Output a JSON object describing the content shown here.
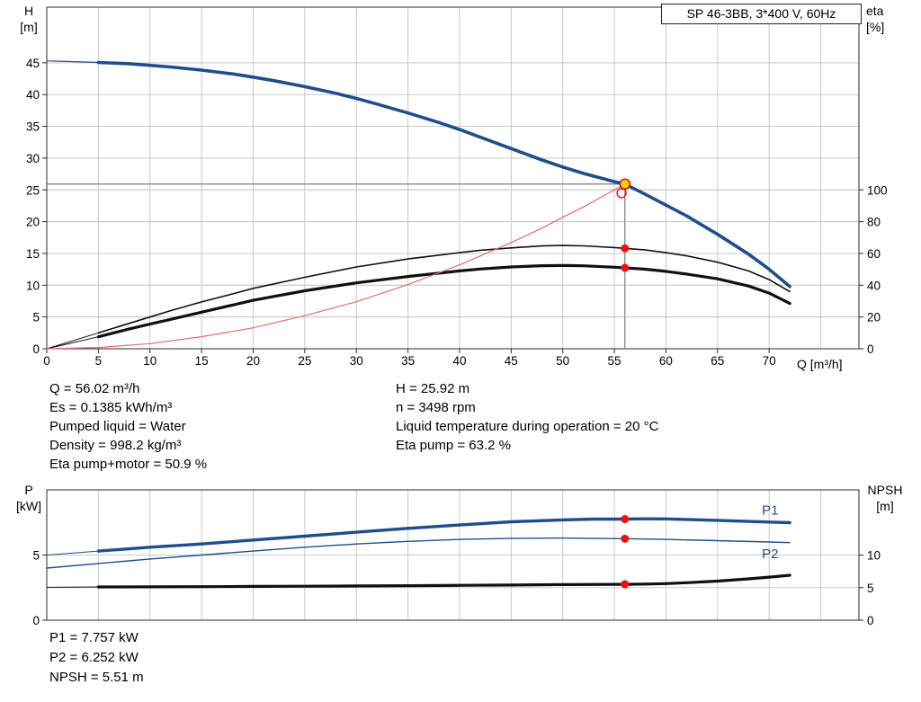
{
  "title_box": {
    "label": "SP 46-3BB, 3*400 V, 60Hz"
  },
  "axis_corner_labels": {
    "h": "H",
    "h_unit": "[m]",
    "eta": "eta",
    "eta_unit": "[%]",
    "q": "Q [m³/h]",
    "p": "P",
    "p_unit": "[kW]",
    "npsh": "NPSH",
    "npsh_unit": "[m]"
  },
  "operating_point_info": {
    "left": [
      "Q = 56.02 m³/h",
      "Es = 0.1385 kWh/m³",
      "Pumped liquid = Water",
      "Density = 998.2 kg/m³",
      "Eta pump+motor = 50.9 %"
    ],
    "right": [
      "H = 25.92 m",
      "n = 3498 rpm",
      "Liquid temperature during operation = 20 °C",
      "Eta pump = 63.2 %"
    ]
  },
  "power_info": [
    "P1 = 7.757 kW",
    "P2 = 6.252 kW",
    "NPSH = 5.51 m"
  ],
  "colors": {
    "curve_blue": "#1e4e8c",
    "curve_black": "#101010",
    "system_red": "#e36c6c",
    "marker_red": "#ee1111",
    "marker_yellow": "#ffd400",
    "grid": "#c9c9c9",
    "frame": "#2a2a2a",
    "crosshair": "#7d7d7d"
  },
  "chart_data": [
    {
      "id": "qh-efficiency-chart",
      "type": "line",
      "title": "SP 46-3BB, 3*400 V, 60Hz",
      "x_axis": {
        "label": "Q [m³/h]",
        "min": 0,
        "max": 78.7,
        "grid_step": 5,
        "ticks": [
          0,
          5,
          10,
          15,
          20,
          25,
          30,
          35,
          40,
          45,
          50,
          55,
          60,
          65,
          70
        ],
        "show_tick_labels": true
      },
      "y_left": {
        "label": "H [m]",
        "min": 0,
        "max": 53.75,
        "ticks": [
          0,
          5,
          10,
          15,
          20,
          25,
          30,
          35,
          40,
          45
        ]
      },
      "y_right": {
        "label": "eta [%]",
        "min": 0,
        "max": 215,
        "ticks": [
          0,
          20,
          40,
          60,
          80,
          100
        ]
      },
      "crosshair": {
        "q": 56.02,
        "value": 25.92,
        "axis": "left"
      },
      "series": [
        {
          "name": "head-curve-lead",
          "axis": "left",
          "color": "#1e4e8c",
          "width": 1.2,
          "points": [
            [
              0,
              45.3
            ],
            [
              2,
              45.2
            ],
            [
              5,
              45.05
            ]
          ]
        },
        {
          "name": "head-curve",
          "axis": "left",
          "color": "#1e4e8c",
          "width": 3.6,
          "points": [
            [
              5,
              45.05
            ],
            [
              8,
              44.85
            ],
            [
              10,
              44.6
            ],
            [
              12,
              44.35
            ],
            [
              15,
              43.85
            ],
            [
              18,
              43.25
            ],
            [
              20,
              42.75
            ],
            [
              22,
              42.2
            ],
            [
              25,
              41.25
            ],
            [
              28,
              40.2
            ],
            [
              30,
              39.4
            ],
            [
              32,
              38.5
            ],
            [
              35,
              37.1
            ],
            [
              38,
              35.6
            ],
            [
              40,
              34.5
            ],
            [
              42,
              33.3
            ],
            [
              45,
              31.5
            ],
            [
              48,
              29.7
            ],
            [
              50,
              28.6
            ],
            [
              52,
              27.6
            ],
            [
              55,
              26.3
            ],
            [
              56.02,
              25.92
            ],
            [
              58,
              24.3
            ],
            [
              60,
              22.6
            ],
            [
              62,
              20.9
            ],
            [
              65,
              18.0
            ],
            [
              68,
              14.9
            ],
            [
              70,
              12.5
            ],
            [
              72,
              9.8
            ]
          ]
        },
        {
          "name": "eta-pump-curve-lead",
          "axis": "right",
          "color": "#101010",
          "width": 1,
          "points": [
            [
              0,
              0
            ],
            [
              5,
              10
            ]
          ]
        },
        {
          "name": "eta-pump-curve",
          "axis": "right",
          "color": "#101010",
          "width": 1.6,
          "points": [
            [
              5,
              10
            ],
            [
              8,
              16
            ],
            [
              10,
              20
            ],
            [
              12,
              24
            ],
            [
              15,
              29.5
            ],
            [
              18,
              34.5
            ],
            [
              20,
              38
            ],
            [
              25,
              45
            ],
            [
              30,
              51.5
            ],
            [
              35,
              56.5
            ],
            [
              40,
              60.5
            ],
            [
              42,
              62
            ],
            [
              45,
              63.5
            ],
            [
              48,
              64.7
            ],
            [
              50,
              65
            ],
            [
              52,
              64.8
            ],
            [
              55,
              63.7
            ],
            [
              56.02,
              63.2
            ],
            [
              58,
              62.2
            ],
            [
              60,
              60.5
            ],
            [
              62,
              58.5
            ],
            [
              65,
              54.5
            ],
            [
              68,
              49
            ],
            [
              70,
              43.5
            ],
            [
              72,
              36
            ]
          ]
        },
        {
          "name": "eta-pump-motor-curve-lead",
          "axis": "right",
          "color": "#101010",
          "width": 1,
          "points": [
            [
              0,
              0
            ],
            [
              5,
              7.5
            ]
          ]
        },
        {
          "name": "eta-pump-motor-curve",
          "axis": "right",
          "color": "#101010",
          "width": 3.2,
          "points": [
            [
              5,
              7.5
            ],
            [
              8,
              12.5
            ],
            [
              10,
              15.5
            ],
            [
              12,
              18.5
            ],
            [
              15,
              23
            ],
            [
              18,
              27.5
            ],
            [
              20,
              30.5
            ],
            [
              25,
              36.5
            ],
            [
              30,
              41.5
            ],
            [
              35,
              45.5
            ],
            [
              40,
              49
            ],
            [
              42,
              50.2
            ],
            [
              45,
              51.5
            ],
            [
              48,
              52.3
            ],
            [
              50,
              52.4
            ],
            [
              52,
              52.2
            ],
            [
              55,
              51.3
            ],
            [
              56.02,
              50.9
            ],
            [
              58,
              50.1
            ],
            [
              60,
              48.7
            ],
            [
              62,
              47
            ],
            [
              65,
              44
            ],
            [
              68,
              39.5
            ],
            [
              70,
              35
            ],
            [
              72,
              28.5
            ]
          ]
        },
        {
          "name": "system-curve",
          "axis": "left",
          "color": "#e36c6c",
          "width": 1.2,
          "points": [
            [
              0,
              0
            ],
            [
              5,
              0.2
            ],
            [
              10,
              0.8
            ],
            [
              15,
              1.9
            ],
            [
              20,
              3.3
            ],
            [
              25,
              5.2
            ],
            [
              30,
              7.4
            ],
            [
              35,
              10.1
            ],
            [
              40,
              13.2
            ],
            [
              45,
              16.7
            ],
            [
              48,
              19.0
            ],
            [
              50,
              20.7
            ],
            [
              52,
              22.3
            ],
            [
              54,
              24.1
            ],
            [
              55,
              25.0
            ],
            [
              56.02,
              25.92
            ]
          ]
        }
      ],
      "markers": [
        {
          "name": "system-duty-ring",
          "q": 55.7,
          "value": 24.5,
          "axis": "left",
          "style": "red-ring"
        },
        {
          "name": "duty-point",
          "q": 56.02,
          "value": 25.92,
          "axis": "left",
          "style": "yellow-dot"
        },
        {
          "name": "eta-pump-duty-dot",
          "q": 56.02,
          "value": 63.2,
          "axis": "right",
          "style": "red-dot"
        },
        {
          "name": "eta-pump-motor-duty-dot",
          "q": 56.02,
          "value": 50.9,
          "axis": "right",
          "style": "red-dot"
        }
      ],
      "labels": []
    },
    {
      "id": "power-npsh-chart",
      "type": "line",
      "title": "",
      "x_axis": {
        "label": "",
        "min": 0,
        "max": 78.7,
        "grid_step": 5,
        "ticks": [],
        "show_tick_labels": false
      },
      "y_left": {
        "label": "P [kW]",
        "min": 0,
        "max": 10,
        "ticks": [
          0,
          5
        ]
      },
      "y_right": {
        "label": "NPSH [m]",
        "min": 0,
        "max": 20,
        "ticks": [
          0,
          5,
          10
        ]
      },
      "series": [
        {
          "name": "p1-curve-lead",
          "axis": "left",
          "color": "#1e4e8c",
          "width": 1,
          "points": [
            [
              0,
              5.0
            ],
            [
              5,
              5.3
            ]
          ]
        },
        {
          "name": "p1-curve",
          "axis": "left",
          "color": "#1e4e8c",
          "width": 3.4,
          "points": [
            [
              5,
              5.3
            ],
            [
              10,
              5.6
            ],
            [
              15,
              5.85
            ],
            [
              20,
              6.15
            ],
            [
              25,
              6.45
            ],
            [
              30,
              6.75
            ],
            [
              35,
              7.05
            ],
            [
              40,
              7.3
            ],
            [
              45,
              7.55
            ],
            [
              50,
              7.7
            ],
            [
              53,
              7.76
            ],
            [
              56.02,
              7.757
            ],
            [
              58,
              7.78
            ],
            [
              60,
              7.77
            ],
            [
              62,
              7.73
            ],
            [
              65,
              7.66
            ],
            [
              68,
              7.58
            ],
            [
              70,
              7.53
            ],
            [
              72,
              7.48
            ]
          ]
        },
        {
          "name": "p2-curve",
          "axis": "left",
          "color": "#1e4e8c",
          "width": 1.4,
          "points": [
            [
              0,
              4.0
            ],
            [
              5,
              4.35
            ],
            [
              10,
              4.7
            ],
            [
              15,
              5.0
            ],
            [
              20,
              5.3
            ],
            [
              25,
              5.6
            ],
            [
              30,
              5.85
            ],
            [
              35,
              6.05
            ],
            [
              40,
              6.2
            ],
            [
              45,
              6.28
            ],
            [
              50,
              6.3
            ],
            [
              53,
              6.28
            ],
            [
              56.02,
              6.252
            ],
            [
              60,
              6.2
            ],
            [
              65,
              6.1
            ],
            [
              70,
              6.0
            ],
            [
              72,
              5.95
            ]
          ]
        },
        {
          "name": "npsh-curve-lead",
          "axis": "right",
          "color": "#101010",
          "width": 1,
          "points": [
            [
              0,
              5.05
            ],
            [
              5,
              5.1
            ]
          ]
        },
        {
          "name": "npsh-curve",
          "axis": "right",
          "color": "#101010",
          "width": 3.2,
          "points": [
            [
              5,
              5.1
            ],
            [
              10,
              5.12
            ],
            [
              15,
              5.15
            ],
            [
              20,
              5.18
            ],
            [
              25,
              5.22
            ],
            [
              30,
              5.26
            ],
            [
              35,
              5.3
            ],
            [
              40,
              5.35
            ],
            [
              45,
              5.4
            ],
            [
              50,
              5.46
            ],
            [
              55,
              5.5
            ],
            [
              56.02,
              5.51
            ],
            [
              58,
              5.55
            ],
            [
              60,
              5.62
            ],
            [
              62,
              5.75
            ],
            [
              65,
              6.0
            ],
            [
              68,
              6.35
            ],
            [
              70,
              6.6
            ],
            [
              72,
              6.9
            ]
          ]
        }
      ],
      "markers": [
        {
          "name": "p1-duty-dot",
          "q": 56.02,
          "value": 7.757,
          "axis": "left",
          "style": "red-dot"
        },
        {
          "name": "p2-duty-dot",
          "q": 56.02,
          "value": 6.252,
          "axis": "left",
          "style": "red-dot"
        },
        {
          "name": "npsh-duty-dot",
          "q": 56.02,
          "value": 5.51,
          "axis": "right",
          "style": "red-dot"
        }
      ],
      "labels": [
        {
          "text": "P1",
          "q": 69.3,
          "value": 8.45,
          "axis": "left",
          "color": "#1e4e8c"
        },
        {
          "text": "P2",
          "q": 69.3,
          "value": 5.1,
          "axis": "left",
          "color": "#1e4e8c"
        }
      ]
    }
  ]
}
